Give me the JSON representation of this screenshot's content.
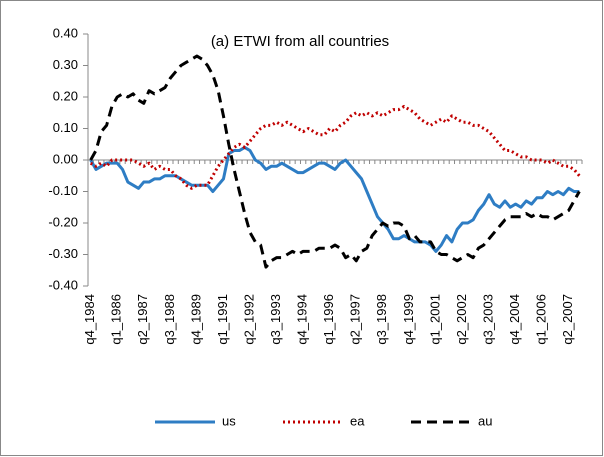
{
  "chart_data": {
    "type": "line",
    "title": "(a) ETWI from all countries",
    "categories": [
      "q4_1984",
      null,
      null,
      null,
      null,
      "q1_1986",
      null,
      null,
      null,
      null,
      "q2_1987",
      null,
      null,
      null,
      null,
      "q3_1988",
      null,
      null,
      null,
      null,
      "q4_1989",
      null,
      null,
      null,
      null,
      "q1_1991",
      null,
      null,
      null,
      null,
      "q2_1992",
      null,
      null,
      null,
      null,
      "q3_1993",
      null,
      null,
      null,
      null,
      "q4_1994",
      null,
      null,
      null,
      null,
      "q1_1996",
      null,
      null,
      null,
      null,
      "q2_1997",
      null,
      null,
      null,
      null,
      "q3_1998",
      null,
      null,
      null,
      null,
      "q4_1999",
      null,
      null,
      null,
      null,
      "q1_2001",
      null,
      null,
      null,
      null,
      "q2_2002",
      null,
      null,
      null,
      null,
      "q3_2003",
      null,
      null,
      null,
      null,
      "q4_2004",
      null,
      null,
      null,
      null,
      "q1_2006",
      null,
      null,
      null,
      null,
      "q2_2007",
      null,
      null
    ],
    "series": [
      {
        "name": "us",
        "color": "#2e7dc4",
        "dash": "solid",
        "values": [
          0,
          -0.03,
          -0.02,
          -0.01,
          -0.01,
          -0.01,
          -0.03,
          -0.07,
          -0.08,
          -0.09,
          -0.07,
          -0.07,
          -0.06,
          -0.06,
          -0.05,
          -0.05,
          -0.05,
          -0.06,
          -0.07,
          -0.08,
          -0.08,
          -0.08,
          -0.08,
          -0.1,
          -0.08,
          -0.06,
          0.02,
          0.03,
          0.03,
          0.04,
          0.03,
          0,
          -0.01,
          -0.03,
          -0.02,
          -0.02,
          -0.01,
          -0.02,
          -0.03,
          -0.04,
          -0.04,
          -0.03,
          -0.02,
          -0.01,
          -0.01,
          -0.02,
          -0.03,
          -0.01,
          0,
          -0.02,
          -0.04,
          -0.06,
          -0.1,
          -0.14,
          -0.18,
          -0.2,
          -0.22,
          -0.25,
          -0.25,
          -0.24,
          -0.25,
          -0.26,
          -0.26,
          -0.26,
          -0.27,
          -0.29,
          -0.27,
          -0.24,
          -0.26,
          -0.22,
          -0.2,
          -0.2,
          -0.19,
          -0.16,
          -0.14,
          -0.11,
          -0.14,
          -0.15,
          -0.13,
          -0.15,
          -0.14,
          -0.15,
          -0.13,
          -0.14,
          -0.12,
          -0.12,
          -0.1,
          -0.11,
          -0.1,
          -0.11,
          -0.09,
          -0.1,
          -0.1
        ]
      },
      {
        "name": "ea",
        "color": "#c00000",
        "dash": "dotted",
        "values": [
          -0.01,
          -0.02,
          -0.01,
          -0.02,
          0,
          0,
          0,
          0,
          0,
          -0.01,
          -0.02,
          -0.01,
          -0.03,
          -0.02,
          -0.03,
          -0.03,
          -0.05,
          -0.06,
          -0.08,
          -0.09,
          -0.08,
          -0.08,
          -0.08,
          -0.05,
          -0.02,
          0,
          0.02,
          0.04,
          0.05,
          0.04,
          0.06,
          0.08,
          0.1,
          0.11,
          0.11,
          0.12,
          0.11,
          0.12,
          0.11,
          0.1,
          0.09,
          0.1,
          0.09,
          0.08,
          0.08,
          0.1,
          0.09,
          0.11,
          0.12,
          0.14,
          0.15,
          0.14,
          0.15,
          0.14,
          0.15,
          0.14,
          0.15,
          0.16,
          0.16,
          0.17,
          0.16,
          0.15,
          0.13,
          0.12,
          0.11,
          0.12,
          0.13,
          0.12,
          0.14,
          0.13,
          0.12,
          0.12,
          0.11,
          0.11,
          0.1,
          0.09,
          0.07,
          0.05,
          0.03,
          0.03,
          0.02,
          0.01,
          0.01,
          0,
          0,
          0,
          -0.01,
          0,
          -0.01,
          -0.02,
          -0.02,
          -0.03,
          -0.05
        ]
      },
      {
        "name": "au",
        "color": "#000000",
        "dash": "dashed",
        "values": [
          0,
          0.03,
          0.09,
          0.11,
          0.17,
          0.2,
          0.21,
          0.2,
          0.21,
          0.19,
          0.18,
          0.22,
          0.21,
          0.22,
          0.23,
          0.26,
          0.28,
          0.3,
          0.31,
          0.32,
          0.33,
          0.32,
          0.3,
          0.27,
          0.22,
          0.14,
          0.05,
          -0.03,
          -0.1,
          -0.17,
          -0.23,
          -0.26,
          -0.27,
          -0.34,
          -0.32,
          -0.31,
          -0.31,
          -0.3,
          -0.29,
          -0.3,
          -0.29,
          -0.29,
          -0.29,
          -0.28,
          -0.28,
          -0.28,
          -0.27,
          -0.28,
          -0.31,
          -0.3,
          -0.32,
          -0.29,
          -0.28,
          -0.24,
          -0.22,
          -0.2,
          -0.21,
          -0.2,
          -0.2,
          -0.21,
          -0.25,
          -0.24,
          -0.26,
          -0.26,
          -0.26,
          -0.29,
          -0.3,
          -0.3,
          -0.31,
          -0.32,
          -0.31,
          -0.3,
          -0.31,
          -0.28,
          -0.27,
          -0.25,
          -0.23,
          -0.21,
          -0.19,
          -0.18,
          -0.18,
          -0.18,
          -0.17,
          -0.18,
          -0.17,
          -0.18,
          -0.18,
          -0.19,
          -0.18,
          -0.17,
          -0.16,
          -0.13,
          -0.1
        ]
      }
    ],
    "ylim": [
      -0.4,
      0.4
    ],
    "yticks": [
      {
        "value": -0.4,
        "label": "-0.40"
      },
      {
        "value": -0.3,
        "label": "-0.30"
      },
      {
        "value": -0.2,
        "label": "-0.20"
      },
      {
        "value": -0.1,
        "label": "-0.10"
      },
      {
        "value": 0,
        "label": "0.00"
      },
      {
        "value": 0.1,
        "label": "0.10"
      },
      {
        "value": 0.2,
        "label": "0.20"
      },
      {
        "value": 0.3,
        "label": "0.30"
      },
      {
        "value": 0.4,
        "label": "0.40"
      }
    ],
    "grid": false,
    "legend": "bottom"
  }
}
